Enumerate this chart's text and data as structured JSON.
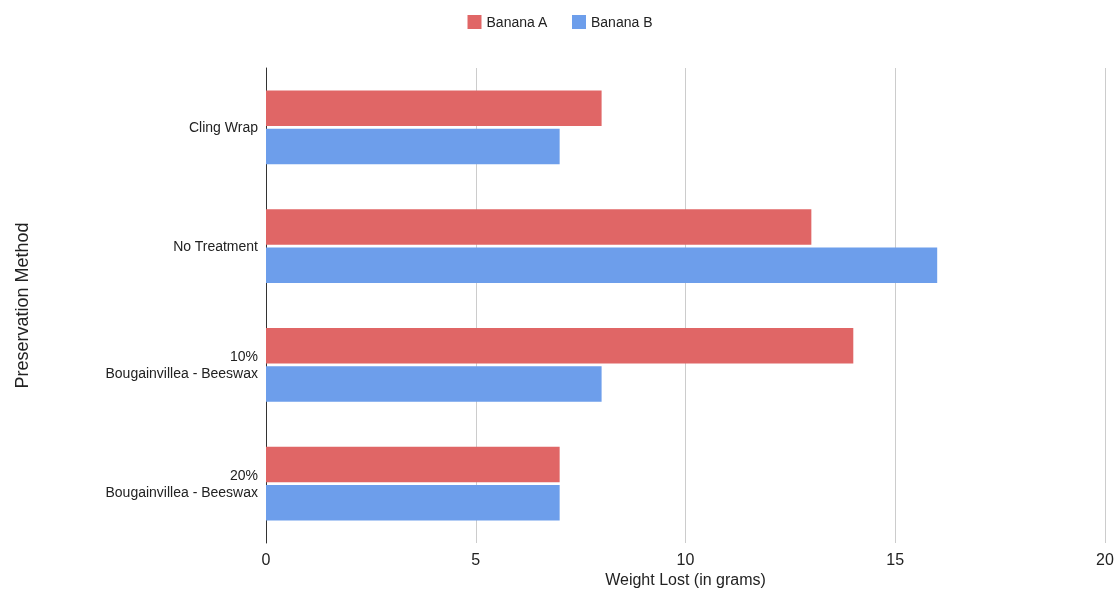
{
  "chart_data": {
    "type": "bar",
    "orientation": "horizontal",
    "xlabel": "Weight Lost (in grams)",
    "ylabel": "Preservation Method",
    "categories": [
      "Cling Wrap",
      "No Treatment",
      "10%\nBougainvillea - Beeswax",
      "20%\nBougainvillea - Beeswax"
    ],
    "series": [
      {
        "name": "Banana A",
        "color": "#e06666",
        "values": [
          8,
          13,
          14,
          7
        ]
      },
      {
        "name": "Banana B",
        "color": "#6d9eeb",
        "values": [
          7,
          16,
          8,
          7
        ]
      }
    ],
    "xlim": [
      0,
      20
    ],
    "xticks": [
      0,
      5,
      10,
      15,
      20
    ],
    "grid": "x",
    "legend": "top"
  }
}
